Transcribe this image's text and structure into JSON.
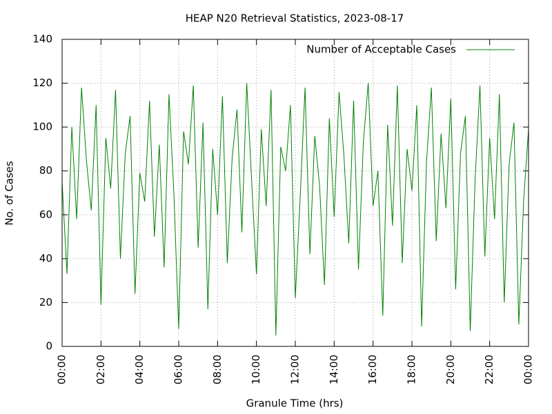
{
  "chart_data": {
    "type": "line",
    "title": "HEAP N20 Retrieval Statistics, 2023-08-17",
    "xlabel": "Granule Time (hrs)",
    "ylabel": "No. of Cases",
    "x": [
      0,
      0.25,
      0.5,
      0.75,
      1,
      1.25,
      1.5,
      1.75,
      2,
      2.25,
      2.5,
      2.75,
      3,
      3.25,
      3.5,
      3.75,
      4,
      4.25,
      4.5,
      4.75,
      5,
      5.25,
      5.5,
      5.75,
      6,
      6.25,
      6.5,
      6.75,
      7,
      7.25,
      7.5,
      7.75,
      8,
      8.25,
      8.5,
      8.75,
      9,
      9.25,
      9.5,
      9.75,
      10,
      10.25,
      10.5,
      10.75,
      11,
      11.25,
      11.5,
      11.75,
      12,
      12.25,
      12.5,
      12.75,
      13,
      13.25,
      13.5,
      13.75,
      14,
      14.25,
      14.5,
      14.75,
      15,
      15.25,
      15.5,
      15.75,
      16,
      16.25,
      16.5,
      16.75,
      17,
      17.25,
      17.5,
      17.75,
      18,
      18.25,
      18.5,
      18.75,
      19,
      19.25,
      19.5,
      19.75,
      20,
      20.25,
      20.5,
      20.75,
      21,
      21.25,
      21.5,
      21.75,
      22,
      22.25,
      22.5,
      22.75,
      23,
      23.25,
      23.5,
      23.75,
      24
    ],
    "series": [
      {
        "name": "Number of Acceptable Cases",
        "color": "#008000",
        "values": [
          75,
          33,
          100,
          58,
          118,
          85,
          62,
          110,
          19,
          95,
          72,
          117,
          40,
          88,
          105,
          24,
          79,
          66,
          112,
          50,
          92,
          36,
          115,
          70,
          8,
          98,
          83,
          119,
          45,
          102,
          17,
          90,
          60,
          114,
          38,
          86,
          108,
          52,
          120,
          76,
          33,
          99,
          64,
          117,
          5,
          91,
          80,
          110,
          22,
          68,
          118,
          42,
          96,
          73,
          28,
          104,
          59,
          116,
          87,
          47,
          112,
          35,
          93,
          120,
          64,
          80,
          14,
          101,
          55,
          119,
          38,
          90,
          71,
          110,
          9,
          84,
          118,
          48,
          97,
          63,
          113,
          26,
          88,
          105,
          7,
          76,
          119,
          41,
          95,
          58,
          115,
          20,
          83,
          102,
          10,
          67,
          99
        ]
      }
    ],
    "xlim": [
      0,
      24
    ],
    "xticks": [
      {
        "value": 0,
        "label": "00:00"
      },
      {
        "value": 2,
        "label": "02:00"
      },
      {
        "value": 4,
        "label": "04:00"
      },
      {
        "value": 6,
        "label": "06:00"
      },
      {
        "value": 8,
        "label": "08:00"
      },
      {
        "value": 10,
        "label": "10:00"
      },
      {
        "value": 12,
        "label": "12:00"
      },
      {
        "value": 14,
        "label": "14:00"
      },
      {
        "value": 16,
        "label": "16:00"
      },
      {
        "value": 18,
        "label": "18:00"
      },
      {
        "value": 20,
        "label": "20:00"
      },
      {
        "value": 22,
        "label": "22:00"
      },
      {
        "value": 24,
        "label": "00:00"
      }
    ],
    "ylim": [
      0,
      140
    ],
    "yticks": [
      0,
      20,
      40,
      60,
      80,
      100,
      120,
      140
    ],
    "grid": true,
    "legend": "top-right"
  }
}
